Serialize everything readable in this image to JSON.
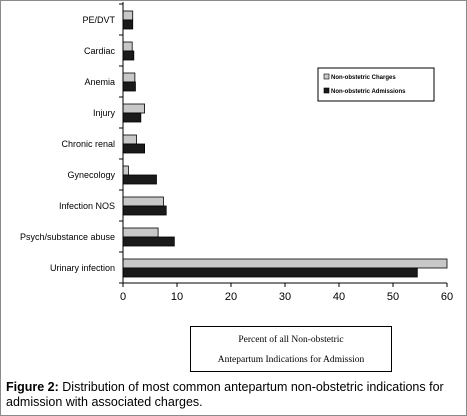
{
  "chart_data": {
    "type": "bar",
    "orientation": "horizontal",
    "categories": [
      "PE/DVT",
      "Cardiac",
      "Anemia",
      "Injury",
      "Chronic renal",
      "Gynecology",
      "Infection NOS",
      "Psych/substance abuse",
      "Urinary infection"
    ],
    "series": [
      {
        "name": "Non-obstetric Charges",
        "color": "#c8c8c8",
        "values": [
          1.8,
          1.7,
          2.2,
          4.0,
          2.5,
          1.0,
          7.5,
          6.5,
          60
        ]
      },
      {
        "name": "Non-obstetric Admissions",
        "color": "#1a1a1a",
        "values": [
          1.8,
          2.0,
          2.3,
          3.3,
          4.0,
          6.2,
          8.0,
          9.5,
          54.5
        ]
      }
    ],
    "xlim": [
      0,
      60
    ],
    "xticks": [
      "0",
      "10",
      "20",
      "30",
      "40",
      "50",
      "60"
    ],
    "xlabel_line1": "Percent of all Non-obstetric",
    "xlabel_line2": "Antepartum Indications for Admission",
    "legend_position": "top-right"
  },
  "caption": {
    "label": "Figure 2:",
    "text": " Distribution of most common antepartum non-obstetric indications for admission with associated charges."
  }
}
